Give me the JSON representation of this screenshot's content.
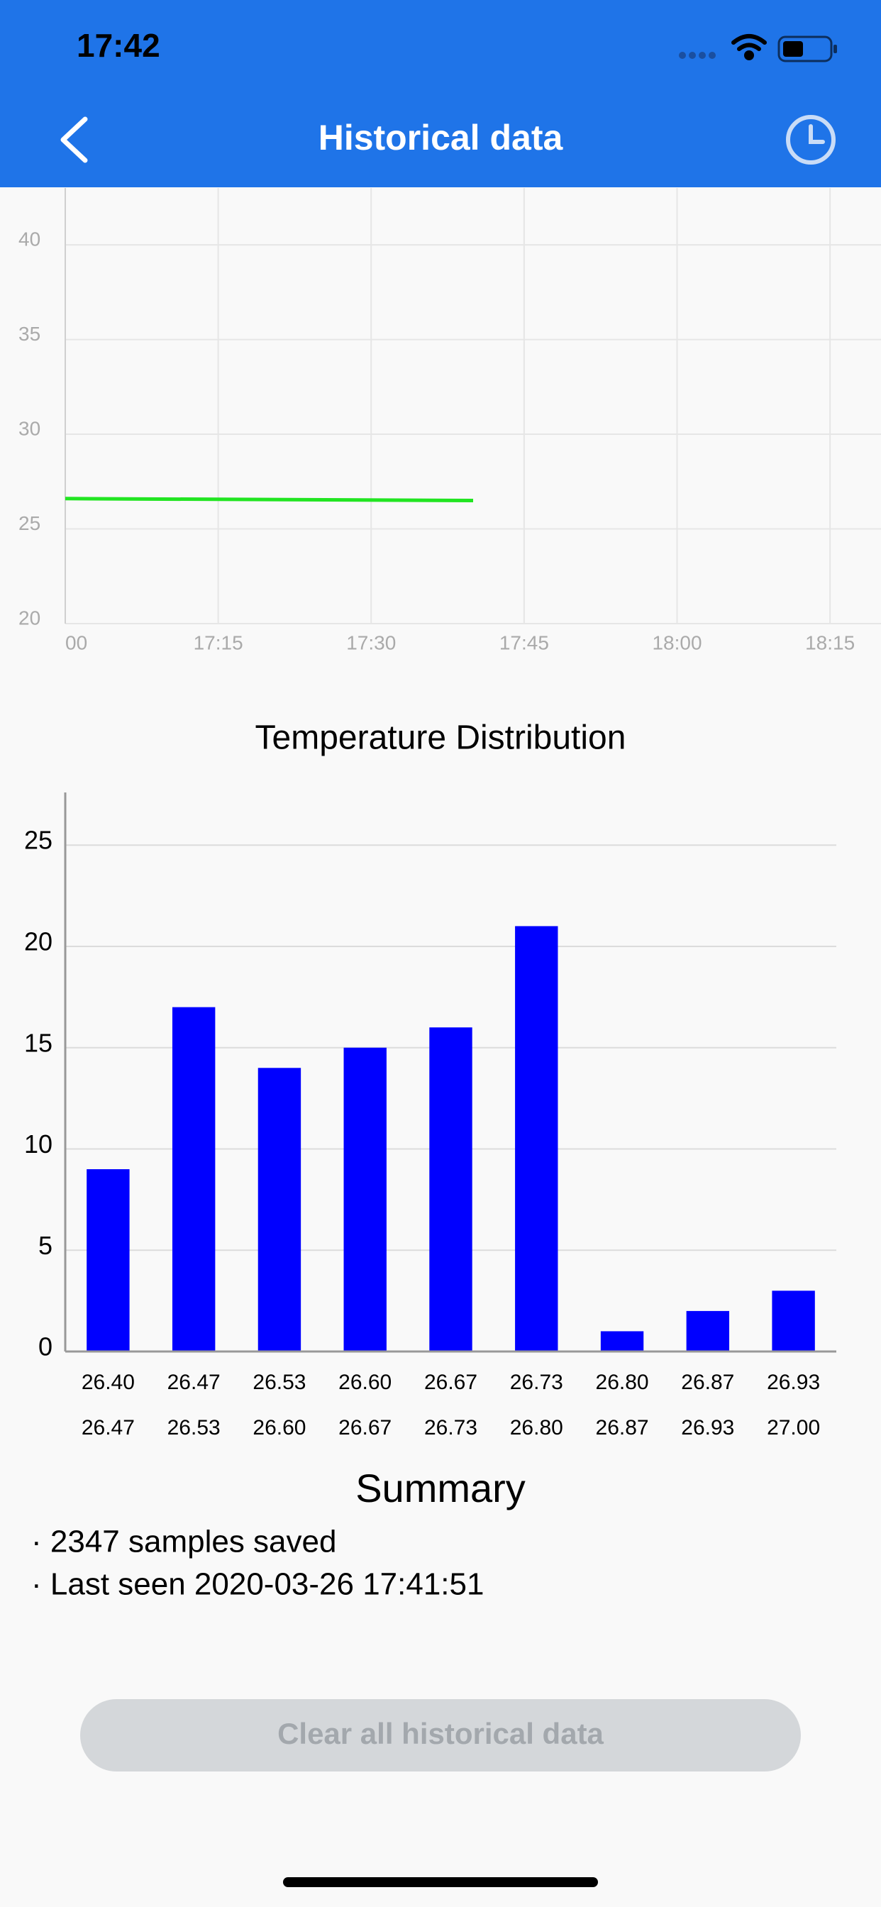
{
  "status_bar": {
    "time": "17:42"
  },
  "nav": {
    "title": "Historical data"
  },
  "line_chart": {
    "type": "line",
    "x": [
      1020,
      1060
    ],
    "series": [
      {
        "color": "#22e522",
        "values": [
          26.6,
          26.5
        ]
      }
    ],
    "xlim": [
      1020,
      1100
    ],
    "xticks": [
      {
        "value": 1020,
        "label": "00"
      },
      {
        "value": 1035,
        "label": "17:15"
      },
      {
        "value": 1050,
        "label": "17:30"
      },
      {
        "value": 1065,
        "label": "17:45"
      },
      {
        "value": 1080,
        "label": "18:00"
      },
      {
        "value": 1095,
        "label": "18:15"
      }
    ],
    "ylim": [
      20,
      43
    ],
    "yticks": [
      20,
      25,
      30,
      35,
      40
    ],
    "grid": true
  },
  "histogram": {
    "type": "histogram",
    "title": "Temperature Distribution",
    "bins": [
      {
        "value": 26.4,
        "label": "26.40"
      },
      {
        "value": 26.47,
        "label": "26.47"
      },
      {
        "value": 26.53,
        "label": "26.53"
      },
      {
        "value": 26.6,
        "label": "26.60"
      },
      {
        "value": 26.67,
        "label": "26.67"
      },
      {
        "value": 26.73,
        "label": "26.73"
      },
      {
        "value": 26.8,
        "label": "26.80"
      },
      {
        "value": 26.87,
        "label": "26.87"
      },
      {
        "value": 26.93,
        "label": "26.93"
      },
      {
        "value": 27,
        "label": "27.00"
      }
    ],
    "values": [
      9,
      17,
      14,
      15,
      16,
      21,
      1,
      2,
      3
    ],
    "color": "#0000ff",
    "ylim": [
      0,
      27.6
    ],
    "yticks": [
      0,
      5,
      10,
      15,
      20,
      25
    ],
    "grid": true
  },
  "summary": {
    "title": "Summary",
    "lines": [
      "· 2347 samples saved",
      "· Last seen 2020-03-26 17:41:51"
    ]
  },
  "button": {
    "label": "Clear all historical data"
  }
}
